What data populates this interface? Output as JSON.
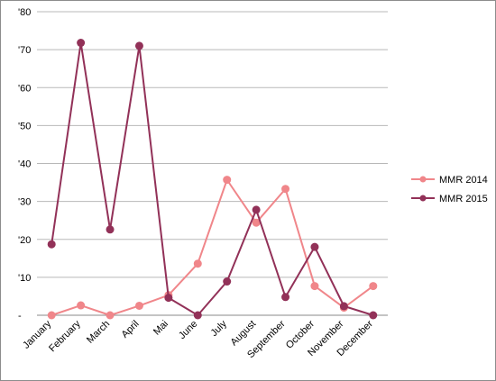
{
  "chart_data": {
    "type": "line",
    "title": "",
    "xlabel": "",
    "ylabel": "",
    "categories": [
      "January",
      "February",
      "March",
      "April",
      "Mai",
      "June",
      "July",
      "August",
      "September",
      "October",
      "November",
      "December"
    ],
    "y_ticks": [
      "-",
      "'10",
      "'20",
      "'30",
      "'40",
      "'50",
      "'60",
      "'70",
      "'80"
    ],
    "ylim": [
      0,
      80
    ],
    "grid": true,
    "legend_position": "right",
    "series": [
      {
        "name": "MMR 2014",
        "color": "#f0868a",
        "values": [
          0,
          2.6,
          0,
          2.5,
          5.3,
          13.6,
          35.7,
          24.4,
          33.3,
          7.7,
          2,
          7.7
        ]
      },
      {
        "name": "MMR 2015",
        "color": "#923158",
        "values": [
          18.7,
          71.8,
          22.6,
          71,
          4.6,
          0,
          8.9,
          27.8,
          4.8,
          18,
          2.4,
          0
        ]
      }
    ]
  }
}
